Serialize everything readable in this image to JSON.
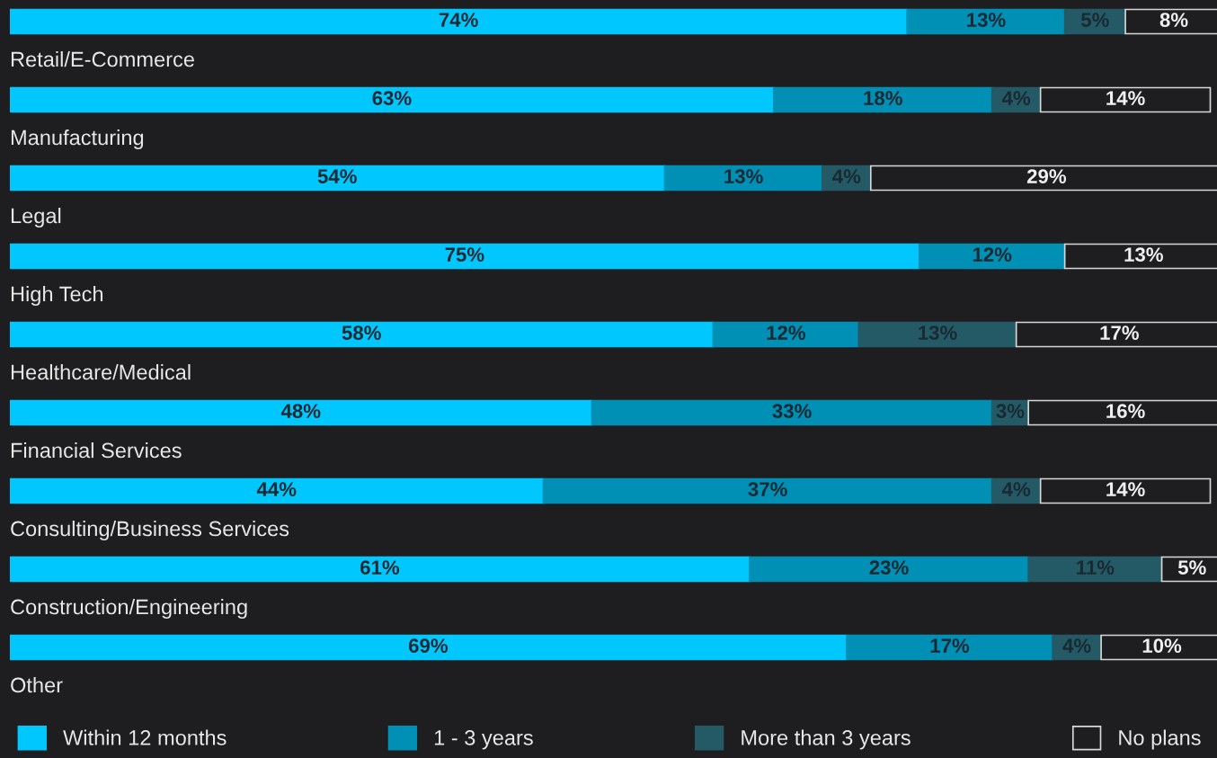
{
  "chart_data": {
    "type": "bar",
    "orientation": "horizontal",
    "stacked": true,
    "xlim": [
      0,
      100
    ],
    "legend": "bottom",
    "categories": [
      "Retail/E-Commerce",
      "Manufacturing",
      "Legal",
      "High Tech",
      "Healthcare/Medical",
      "Financial Services",
      "Consulting/Business Services",
      "Construction/Engineering",
      "Other"
    ],
    "series": [
      {
        "name": "Within 12 months",
        "color": "#00c8ff",
        "values": [
          74,
          63,
          54,
          75,
          58,
          48,
          44,
          61,
          69
        ],
        "value_labels": [
          "74%",
          "63%",
          "54%",
          "75%",
          "58%",
          "48%",
          "44%",
          "61%",
          "69%"
        ]
      },
      {
        "name": "1 - 3 years",
        "color": "#008fb5",
        "values": [
          13,
          18,
          13,
          12,
          12,
          33,
          37,
          23,
          17
        ],
        "value_labels": [
          "13%",
          "18%",
          "13%",
          "12%",
          "12%",
          "33%",
          "37%",
          "23%",
          "17%"
        ]
      },
      {
        "name": "More than 3 years",
        "color": "#245a66",
        "values": [
          5,
          4,
          4,
          null,
          13,
          3,
          4,
          11,
          4
        ],
        "value_labels": [
          "5%",
          "4%",
          "4%",
          null,
          "13%",
          "3%",
          "4%",
          "11%",
          "4%"
        ]
      },
      {
        "name": "No plans",
        "color": "#1e1d1f",
        "values": [
          8,
          14,
          29,
          13,
          17,
          16,
          14,
          5,
          10
        ],
        "value_labels": [
          "8%",
          "14%",
          "29%",
          "13%",
          "17%",
          "16%",
          "14%",
          "5%",
          "10%"
        ]
      }
    ]
  }
}
